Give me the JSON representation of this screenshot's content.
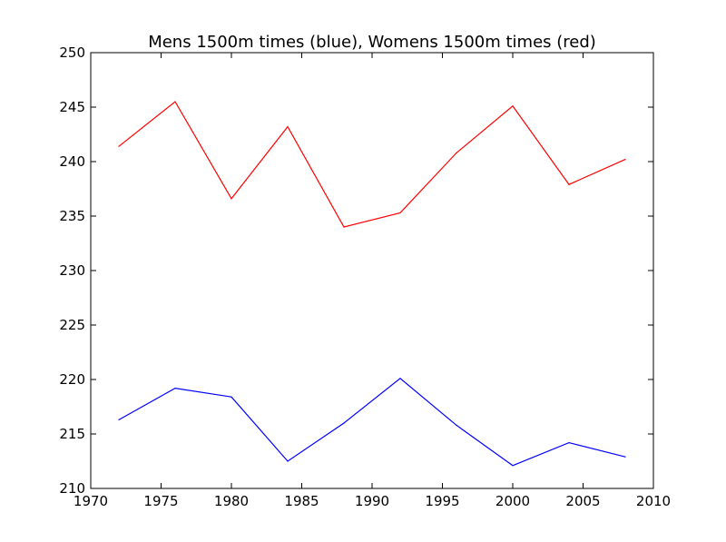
{
  "chart_data": {
    "type": "line",
    "title": "Mens 1500m times (blue), Womens 1500m times (red)",
    "xlabel": "",
    "ylabel": "",
    "xlim": [
      1970,
      2010
    ],
    "ylim": [
      210,
      250
    ],
    "xticks": [
      1970,
      1975,
      1980,
      1985,
      1990,
      1995,
      2000,
      2005,
      2010
    ],
    "yticks": [
      210,
      215,
      220,
      225,
      230,
      235,
      240,
      245,
      250
    ],
    "grid": false,
    "x": [
      1972,
      1976,
      1980,
      1984,
      1988,
      1992,
      1996,
      2000,
      2004,
      2008
    ],
    "series": [
      {
        "color": "#ff0000",
        "values": [
          241.4,
          245.5,
          236.6,
          243.2,
          234.0,
          235.3,
          240.8,
          245.1,
          237.9,
          240.2
        ]
      },
      {
        "color": "#0000ff",
        "values": [
          216.3,
          219.2,
          218.4,
          212.5,
          216.0,
          220.1,
          215.8,
          212.1,
          214.2,
          212.9
        ]
      }
    ]
  }
}
